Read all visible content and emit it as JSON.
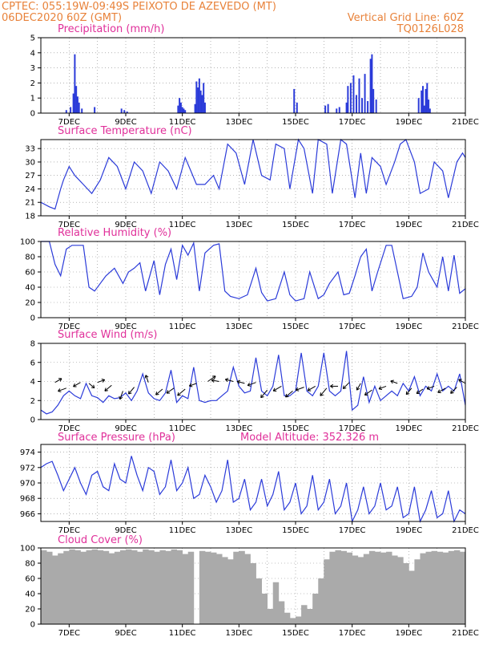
{
  "header": {
    "line1_left": "CPTEC:   055:19W-09:49S  PEIXOTO DE AZEVEDO (MT)",
    "line2_left": "06DEC2020 60Z (GMT)",
    "line2_right": "Vertical Grid Line: 60Z",
    "line3_right": "TQ0126L028"
  },
  "colors": {
    "line": "#2b3bd9",
    "cloud": "#aaaaaa",
    "title": "#e0309a",
    "header": "#e8823a"
  },
  "chart_data": [
    {
      "type": "bar",
      "title": "Precipitation (mm/h)",
      "ylim": [
        0,
        5
      ],
      "yticks": [
        "0",
        "1",
        "2",
        "3",
        "4",
        "5"
      ],
      "xticks": [
        "7DEC",
        "9DEC",
        "11DEC",
        "13DEC",
        "15DEC",
        "17DEC",
        "19DEC",
        "21DEC"
      ],
      "x": [
        6.9,
        7.05,
        7.15,
        7.2,
        7.25,
        7.3,
        7.35,
        7.45,
        7.9,
        8.85,
        8.95,
        9.05,
        10.85,
        10.9,
        10.95,
        11.0,
        11.05,
        11.1,
        11.45,
        11.5,
        11.55,
        11.6,
        11.65,
        11.7,
        11.75,
        11.8,
        14.95,
        15.05,
        16.05,
        16.15,
        16.45,
        16.55,
        16.8,
        16.85,
        16.95,
        17.05,
        17.15,
        17.25,
        17.35,
        17.45,
        17.55,
        17.65,
        17.7,
        17.75,
        17.85,
        19.35,
        19.45,
        19.5,
        19.55,
        19.6,
        19.65,
        19.7,
        19.75
      ],
      "values": [
        0.2,
        0.4,
        1.3,
        3.9,
        1.8,
        1.1,
        0.7,
        0.3,
        0.4,
        0.3,
        0.2,
        0.1,
        0.5,
        1.0,
        0.7,
        0.4,
        0.3,
        0.2,
        0.6,
        2.1,
        1.7,
        2.3,
        1.5,
        1.2,
        2.0,
        0.7,
        1.6,
        0.7,
        0.5,
        0.6,
        0.3,
        0.4,
        0.7,
        1.8,
        2.0,
        2.5,
        1.2,
        2.3,
        1.0,
        2.6,
        0.8,
        3.6,
        3.9,
        1.6,
        0.9,
        1.0,
        1.5,
        1.8,
        0.5,
        1.6,
        2.0,
        0.9,
        0.3
      ]
    },
    {
      "type": "line",
      "title": "Surface Temperature (nC)",
      "ylim": [
        18,
        35
      ],
      "yticks": [
        "18",
        "21",
        "24",
        "27",
        "30",
        "33"
      ],
      "xticks": [
        "7DEC",
        "9DEC",
        "11DEC",
        "13DEC",
        "15DEC",
        "17DEC",
        "19DEC",
        "21DEC"
      ],
      "series": [
        {
          "x": [
            6.0,
            6.3,
            6.5,
            6.7,
            6.8,
            7.0,
            7.2,
            7.5,
            7.8,
            8.1,
            8.4,
            8.7,
            9.0,
            9.3,
            9.6,
            9.9,
            10.2,
            10.5,
            10.8,
            11.1,
            11.3,
            11.5,
            11.8,
            12.1,
            12.3,
            12.6,
            12.9,
            13.2,
            13.5,
            13.8,
            14.1,
            14.3,
            14.6,
            14.8,
            15.1,
            15.3,
            15.6,
            15.8,
            16.1,
            16.3,
            16.6,
            16.8,
            17.1,
            17.3,
            17.5,
            17.7,
            18.0,
            18.2,
            18.5,
            18.7,
            18.9,
            19.2,
            19.4,
            19.7,
            19.9,
            20.2,
            20.4,
            20.7,
            20.9,
            21.0
          ],
          "y": [
            21,
            20,
            19.5,
            24,
            26,
            29,
            27,
            25,
            23,
            26,
            31,
            29,
            24,
            30,
            28,
            23,
            30,
            28,
            24,
            31,
            28,
            25,
            25,
            27,
            24,
            34,
            32,
            25,
            35,
            27,
            26,
            34,
            33,
            24,
            35,
            33,
            23,
            35,
            34,
            23,
            35,
            34,
            22,
            32,
            23,
            31,
            29,
            25,
            30,
            34,
            35,
            30,
            23,
            24,
            30,
            28,
            22,
            30,
            32,
            31
          ]
        }
      ]
    },
    {
      "type": "line",
      "title": "Relative Humidity (%)",
      "ylim": [
        0,
        100
      ],
      "yticks": [
        "0",
        "20",
        "40",
        "60",
        "80",
        "100"
      ],
      "xticks": [
        "7DEC",
        "9DEC",
        "11DEC",
        "13DEC",
        "15DEC",
        "17DEC",
        "19DEC",
        "21DEC"
      ],
      "series": [
        {
          "x": [
            6.0,
            6.3,
            6.5,
            6.7,
            6.9,
            7.1,
            7.3,
            7.5,
            7.7,
            7.9,
            8.1,
            8.3,
            8.6,
            8.9,
            9.1,
            9.3,
            9.5,
            9.7,
            10.0,
            10.2,
            10.4,
            10.6,
            10.8,
            11.0,
            11.2,
            11.4,
            11.6,
            11.8,
            12.1,
            12.3,
            12.5,
            12.7,
            13.0,
            13.3,
            13.6,
            13.8,
            14.0,
            14.3,
            14.6,
            14.8,
            15.0,
            15.3,
            15.5,
            15.8,
            16.0,
            16.2,
            16.5,
            16.7,
            16.9,
            17.1,
            17.3,
            17.5,
            17.7,
            17.9,
            18.2,
            18.4,
            18.6,
            18.8,
            19.1,
            19.3,
            19.5,
            19.7,
            20.0,
            20.2,
            20.4,
            20.6,
            20.8,
            21.0
          ],
          "y": [
            100,
            100,
            70,
            55,
            90,
            95,
            95,
            95,
            40,
            35,
            45,
            55,
            65,
            45,
            60,
            65,
            72,
            35,
            75,
            30,
            70,
            90,
            50,
            95,
            82,
            98,
            35,
            85,
            95,
            97,
            35,
            28,
            25,
            30,
            65,
            33,
            22,
            25,
            60,
            30,
            22,
            25,
            60,
            25,
            30,
            45,
            60,
            30,
            32,
            55,
            80,
            90,
            35,
            60,
            95,
            95,
            60,
            25,
            28,
            40,
            85,
            60,
            40,
            80,
            35,
            82,
            32,
            38
          ]
        }
      ]
    },
    {
      "type": "line",
      "title": "Surface Wind (m/s)",
      "ylim": [
        0,
        8
      ],
      "yticks": [
        "0",
        "2",
        "4",
        "6",
        "8"
      ],
      "xticks": [
        "7DEC",
        "9DEC",
        "11DEC",
        "13DEC",
        "15DEC",
        "17DEC",
        "19DEC",
        "21DEC"
      ],
      "series": [
        {
          "x": [
            6.0,
            6.2,
            6.4,
            6.6,
            6.8,
            7.0,
            7.2,
            7.4,
            7.6,
            7.8,
            8.0,
            8.2,
            8.4,
            8.6,
            8.8,
            9.0,
            9.2,
            9.4,
            9.6,
            9.8,
            10.0,
            10.2,
            10.4,
            10.6,
            10.8,
            11.0,
            11.2,
            11.4,
            11.6,
            11.8,
            12.0,
            12.2,
            12.4,
            12.6,
            12.8,
            13.0,
            13.2,
            13.4,
            13.6,
            13.8,
            14.0,
            14.2,
            14.4,
            14.6,
            14.8,
            15.0,
            15.2,
            15.4,
            15.6,
            15.8,
            16.0,
            16.2,
            16.4,
            16.6,
            16.8,
            17.0,
            17.2,
            17.4,
            17.6,
            17.8,
            18.0,
            18.2,
            18.4,
            18.6,
            18.8,
            19.0,
            19.2,
            19.4,
            19.6,
            19.8,
            20.0,
            20.2,
            20.4,
            20.6,
            20.8,
            21.0
          ],
          "y": [
            1.0,
            0.6,
            0.8,
            1.5,
            2.5,
            3.0,
            2.5,
            2.2,
            3.8,
            2.5,
            2.3,
            1.8,
            2.5,
            2.2,
            2.3,
            2.8,
            2.0,
            3.0,
            4.8,
            2.8,
            2.2,
            2.0,
            2.8,
            5.2,
            1.8,
            2.5,
            2.2,
            5.5,
            2.0,
            1.8,
            2.0,
            2.0,
            2.5,
            3.0,
            5.5,
            3.5,
            2.8,
            3.0,
            6.5,
            3.0,
            2.5,
            3.5,
            6.8,
            2.5,
            2.5,
            3.0,
            7.0,
            3.0,
            2.5,
            3.5,
            7.0,
            3.0,
            2.5,
            3.0,
            7.2,
            1.0,
            1.5,
            4.5,
            1.8,
            3.5,
            2.0,
            2.5,
            3.0,
            2.5,
            3.8,
            3.0,
            4.5,
            2.5,
            3.5,
            3.0,
            4.8,
            3.0,
            3.5,
            3.0,
            4.8,
            1.5
          ]
        }
      ],
      "arrows": {
        "x": [
          6.5,
          6.9,
          7.4,
          7.7,
          8.0,
          8.5,
          8.9,
          9.3,
          9.8,
          10.3,
          10.7,
          11.1,
          11.5,
          11.9,
          12.3,
          12.8,
          13.2,
          13.6,
          14.0,
          14.5,
          14.9,
          15.3,
          15.7,
          16.1,
          16.5,
          16.9,
          17.3,
          17.7,
          18.2,
          18.6,
          19.1,
          19.5,
          19.9,
          20.3,
          20.7,
          21.0
        ],
        "y": [
          3.9,
          3.3,
          3.9,
          3.8,
          3.9,
          3.6,
          3.0,
          3.4,
          3.9,
          3.2,
          3.3,
          3.2,
          3.8,
          4.0,
          4.0,
          4.0,
          3.8,
          3.9,
          3.1,
          3.5,
          3.0,
          3.4,
          3.5,
          3.3,
          3.5,
          3.9,
          3.8,
          3.1,
          3.5,
          3.8,
          3.3,
          3.2,
          3.5,
          3.3,
          3.4,
          3.8
        ],
        "dir_deg": [
          30,
          200,
          210,
          320,
          20,
          220,
          250,
          230,
          110,
          220,
          215,
          220,
          200,
          35,
          170,
          165,
          165,
          200,
          230,
          210,
          220,
          200,
          210,
          230,
          180,
          225,
          240,
          215,
          200,
          160,
          230,
          215,
          200,
          210,
          225,
          150
        ],
        "len": [
          0.4,
          0.5,
          0.45,
          0.35,
          0.4,
          0.5,
          0.5,
          0.5,
          0.4,
          0.5,
          0.5,
          0.6,
          0.4,
          0.55,
          0.4,
          0.45,
          0.4,
          0.5,
          0.6,
          0.55,
          0.55,
          0.5,
          0.5,
          0.6,
          0.4,
          0.5,
          0.4,
          0.5,
          0.4,
          0.35,
          0.45,
          0.4,
          0.4,
          0.5,
          0.5,
          0.4
        ]
      }
    },
    {
      "type": "line",
      "title": "Surface Pressure (hPa)",
      "annotation": "Model Altitude: 352.326 m",
      "ylim": [
        965,
        975
      ],
      "yticks": [
        "966",
        "968",
        "970",
        "972",
        "974"
      ],
      "xticks": [
        "7DEC",
        "9DEC",
        "11DEC",
        "13DEC",
        "15DEC",
        "17DEC",
        "19DEC",
        "21DEC"
      ],
      "series": [
        {
          "x": [
            6.0,
            6.2,
            6.4,
            6.6,
            6.8,
            7.0,
            7.2,
            7.4,
            7.6,
            7.8,
            8.0,
            8.2,
            8.4,
            8.6,
            8.8,
            9.0,
            9.2,
            9.4,
            9.6,
            9.8,
            10.0,
            10.2,
            10.4,
            10.6,
            10.8,
            11.0,
            11.2,
            11.4,
            11.6,
            11.8,
            12.0,
            12.2,
            12.4,
            12.6,
            12.8,
            13.0,
            13.2,
            13.4,
            13.6,
            13.8,
            14.0,
            14.2,
            14.4,
            14.6,
            14.8,
            15.0,
            15.2,
            15.4,
            15.6,
            15.8,
            16.0,
            16.2,
            16.4,
            16.6,
            16.8,
            17.0,
            17.2,
            17.4,
            17.6,
            17.8,
            18.0,
            18.2,
            18.4,
            18.6,
            18.8,
            19.0,
            19.2,
            19.4,
            19.6,
            19.8,
            20.0,
            20.2,
            20.4,
            20.6,
            20.8,
            21.0
          ],
          "y": [
            972.0,
            972.5,
            972.8,
            971.0,
            969.0,
            970.5,
            972.0,
            970.0,
            968.5,
            971.0,
            971.5,
            969.5,
            969.0,
            972.5,
            970.5,
            970.0,
            973.5,
            971.0,
            969.0,
            972.0,
            971.5,
            968.5,
            969.5,
            973.0,
            969.0,
            970.0,
            972.0,
            968.0,
            968.5,
            971.0,
            969.5,
            967.5,
            969.0,
            973.0,
            967.5,
            968.0,
            970.5,
            966.5,
            967.5,
            970.5,
            967.0,
            968.5,
            971.5,
            966.5,
            967.5,
            970.0,
            966.0,
            967.0,
            971.0,
            966.5,
            967.5,
            970.5,
            966.0,
            967.0,
            970.0,
            965.0,
            966.5,
            969.5,
            966.0,
            967.0,
            970.0,
            966.5,
            967.0,
            969.5,
            965.5,
            966.0,
            969.5,
            965.0,
            966.5,
            969.0,
            965.5,
            966.0,
            969.0,
            965.0,
            966.5,
            966.0
          ]
        }
      ]
    },
    {
      "type": "area",
      "title": "Cloud Cover (%)",
      "ylim": [
        0,
        100
      ],
      "yticks": [
        "0",
        "20",
        "40",
        "60",
        "80",
        "100"
      ],
      "xticks": [
        "7DEC",
        "9DEC",
        "11DEC",
        "13DEC",
        "15DEC",
        "17DEC",
        "19DEC",
        "21DEC"
      ],
      "series": [
        {
          "x": [
            6.0,
            6.2,
            6.4,
            6.6,
            6.8,
            7.0,
            7.2,
            7.4,
            7.6,
            7.8,
            8.0,
            8.2,
            8.4,
            8.6,
            8.8,
            9.0,
            9.2,
            9.4,
            9.6,
            9.8,
            10.0,
            10.2,
            10.4,
            10.6,
            10.8,
            11.0,
            11.2,
            11.4,
            11.6,
            11.8,
            12.0,
            12.2,
            12.4,
            12.6,
            12.8,
            13.0,
            13.2,
            13.4,
            13.6,
            13.8,
            14.0,
            14.2,
            14.4,
            14.6,
            14.8,
            15.0,
            15.2,
            15.4,
            15.6,
            15.8,
            16.0,
            16.2,
            16.4,
            16.6,
            16.8,
            17.0,
            17.2,
            17.4,
            17.6,
            17.8,
            18.0,
            18.2,
            18.4,
            18.6,
            18.8,
            19.0,
            19.2,
            19.4,
            19.6,
            19.8,
            20.0,
            20.2,
            20.4,
            20.6,
            20.8,
            21.0
          ],
          "y": [
            97,
            95,
            90,
            93,
            96,
            98,
            97,
            95,
            97,
            98,
            97,
            96,
            93,
            95,
            97,
            98,
            97,
            95,
            98,
            97,
            95,
            97,
            96,
            98,
            97,
            92,
            95,
            0,
            96,
            95,
            94,
            92,
            88,
            85,
            95,
            96,
            92,
            80,
            60,
            40,
            20,
            55,
            30,
            15,
            8,
            10,
            25,
            20,
            40,
            60,
            85,
            95,
            97,
            96,
            94,
            90,
            88,
            92,
            96,
            95,
            94,
            95,
            90,
            88,
            80,
            70,
            85,
            93,
            95,
            96,
            95,
            94,
            96,
            97,
            95,
            97
          ]
        }
      ]
    }
  ]
}
